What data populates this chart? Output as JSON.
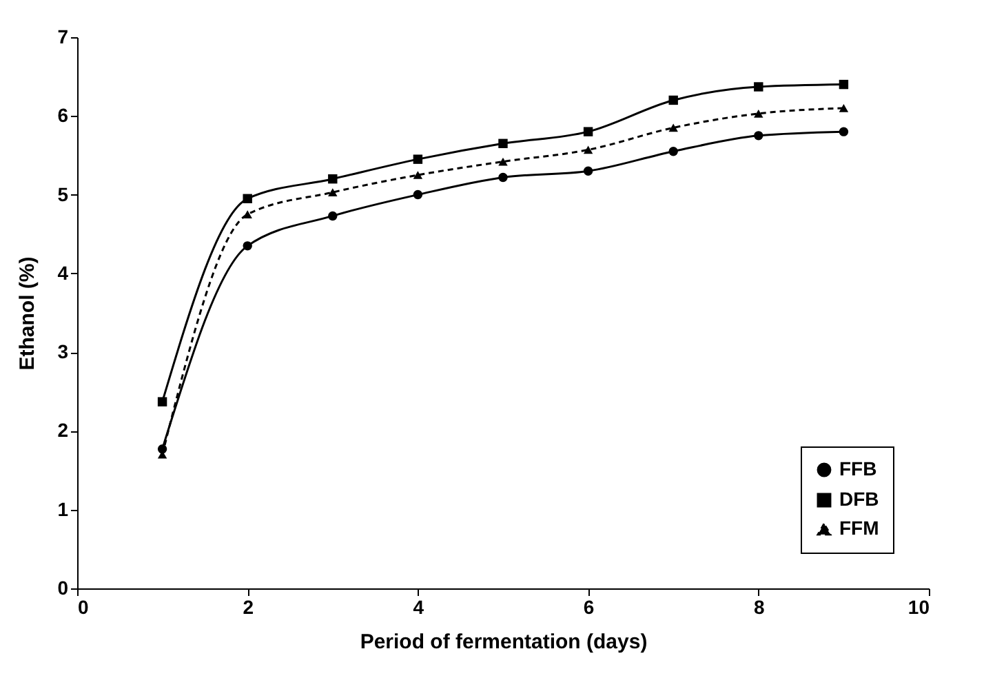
{
  "chart_data": {
    "type": "line",
    "xlabel": "Period of fermentation (days)",
    "ylabel": "Ethanol (%)",
    "x": [
      1,
      2,
      3,
      4,
      5,
      6,
      7,
      8,
      9
    ],
    "series": [
      {
        "name": "FFB",
        "color": "#000000",
        "marker": "circle",
        "line_style": "solid",
        "values": [
          1.77,
          4.35,
          4.73,
          5.0,
          5.22,
          5.3,
          5.55,
          5.75,
          5.8
        ]
      },
      {
        "name": "DFB",
        "color": "#000000",
        "marker": "square",
        "line_style": "solid",
        "values": [
          2.37,
          4.95,
          5.2,
          5.45,
          5.65,
          5.8,
          6.2,
          6.37,
          6.4
        ]
      },
      {
        "name": "FFM",
        "color": "#000000",
        "marker": "triangle",
        "line_style": "dashed",
        "values": [
          1.7,
          4.75,
          5.03,
          5.25,
          5.42,
          5.57,
          5.85,
          6.03,
          6.1
        ]
      }
    ],
    "xlim": [
      0,
      10
    ],
    "xticks": [
      0,
      2,
      4,
      6,
      8,
      10
    ],
    "ylim": [
      0,
      7
    ],
    "yticks": [
      0,
      1,
      2,
      3,
      4,
      5,
      6,
      7
    ],
    "grid": false,
    "legend": "bottom right"
  }
}
